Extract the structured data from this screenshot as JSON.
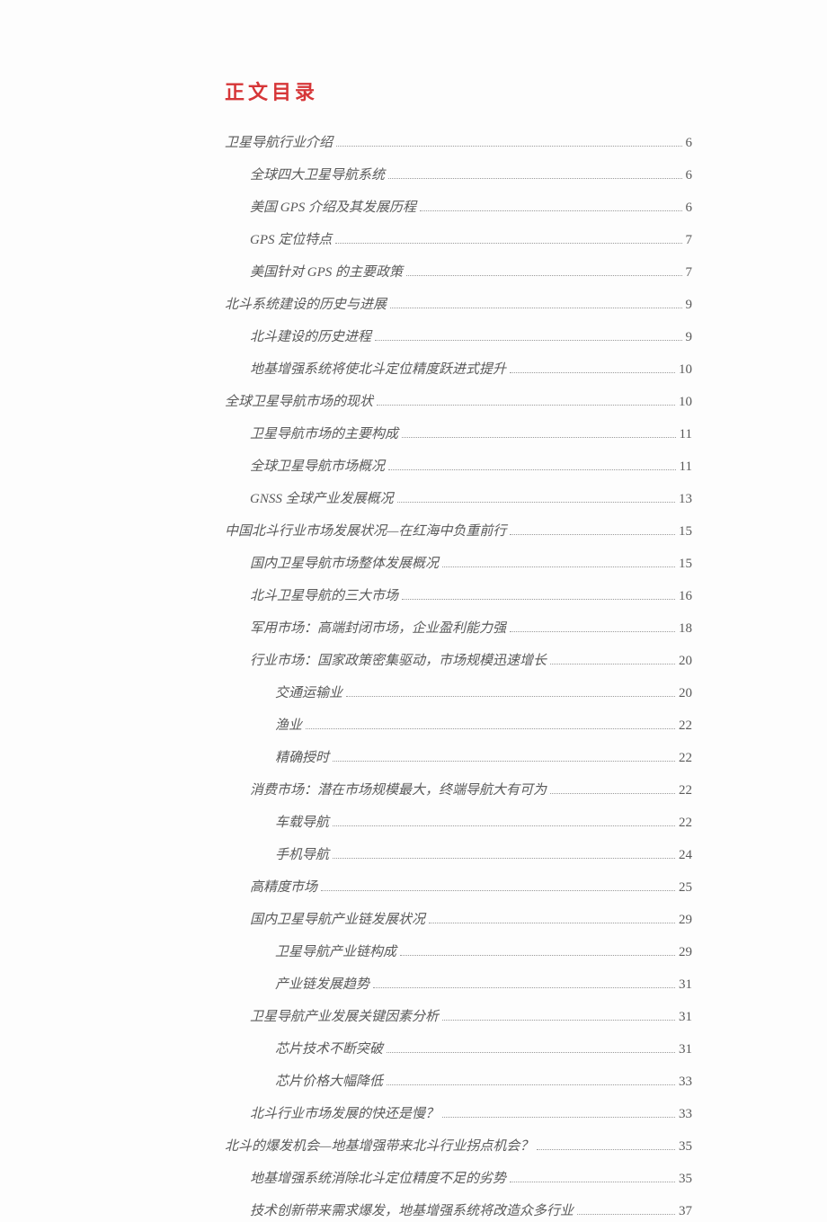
{
  "heading": "正文目录",
  "text_color": "#5a5a5a",
  "heading_color": "#d63638",
  "dot_color": "#9a9a9a",
  "font_size_body": 15,
  "font_size_heading": 22,
  "entries": [
    {
      "level": 0,
      "title": "卫星导航行业介绍",
      "page": "6"
    },
    {
      "level": 1,
      "title": "全球四大卫星导航系统",
      "page": "6"
    },
    {
      "level": 1,
      "title": "美国 GPS 介绍及其发展历程",
      "page": "6"
    },
    {
      "level": 1,
      "title": "GPS 定位特点",
      "page": "7"
    },
    {
      "level": 1,
      "title": "美国针对 GPS 的主要政策",
      "page": "7"
    },
    {
      "level": 0,
      "title": "北斗系统建设的历史与进展",
      "page": "9"
    },
    {
      "level": 1,
      "title": "北斗建设的历史进程",
      "page": "9"
    },
    {
      "level": 1,
      "title": "地基增强系统将使北斗定位精度跃进式提升",
      "page": "10"
    },
    {
      "level": 0,
      "title": "全球卫星导航市场的现状",
      "page": "10"
    },
    {
      "level": 1,
      "title": "卫星导航市场的主要构成",
      "page": "11"
    },
    {
      "level": 1,
      "title": "全球卫星导航市场概况",
      "page": "11"
    },
    {
      "level": 1,
      "title": "GNSS 全球产业发展概况",
      "page": "13"
    },
    {
      "level": 0,
      "title": "中国北斗行业市场发展状况—在红海中负重前行",
      "page": "15"
    },
    {
      "level": 1,
      "title": "国内卫星导航市场整体发展概况",
      "page": "15"
    },
    {
      "level": 1,
      "title": "北斗卫星导航的三大市场",
      "page": "16"
    },
    {
      "level": 1,
      "title": "军用市场：高端封闭市场，企业盈利能力强",
      "page": "18"
    },
    {
      "level": 1,
      "title": "行业市场：国家政策密集驱动，市场规模迅速增长",
      "page": "20"
    },
    {
      "level": 2,
      "title": "交通运输业",
      "page": "20"
    },
    {
      "level": 2,
      "title": "渔业",
      "page": "22"
    },
    {
      "level": 2,
      "title": "精确授时",
      "page": "22"
    },
    {
      "level": 1,
      "title": "消费市场：潜在市场规模最大，终端导航大有可为",
      "page": "22"
    },
    {
      "level": 2,
      "title": "车载导航",
      "page": "22"
    },
    {
      "level": 2,
      "title": "手机导航",
      "page": "24"
    },
    {
      "level": 1,
      "title": "高精度市场",
      "page": "25"
    },
    {
      "level": 1,
      "title": "国内卫星导航产业链发展状况",
      "page": "29"
    },
    {
      "level": 2,
      "title": "卫星导航产业链构成",
      "page": "29"
    },
    {
      "level": 2,
      "title": "产业链发展趋势",
      "page": "31"
    },
    {
      "level": 1,
      "title": "卫星导航产业发展关键因素分析",
      "page": "31"
    },
    {
      "level": 2,
      "title": "芯片技术不断突破",
      "page": "31"
    },
    {
      "level": 2,
      "title": "芯片价格大幅降低",
      "page": "33"
    },
    {
      "level": 1,
      "title": "北斗行业市场发展的快还是慢？",
      "page": "33"
    },
    {
      "level": 0,
      "title": "北斗的爆发机会—地基增强带来北斗行业拐点机会？",
      "page": "35"
    },
    {
      "level": 1,
      "title": "地基增强系统消除北斗定位精度不足的劣势",
      "page": "35"
    },
    {
      "level": 1,
      "title": "技术创新带来需求爆发，地基增强系统将改造众多行业",
      "page": "37"
    }
  ]
}
